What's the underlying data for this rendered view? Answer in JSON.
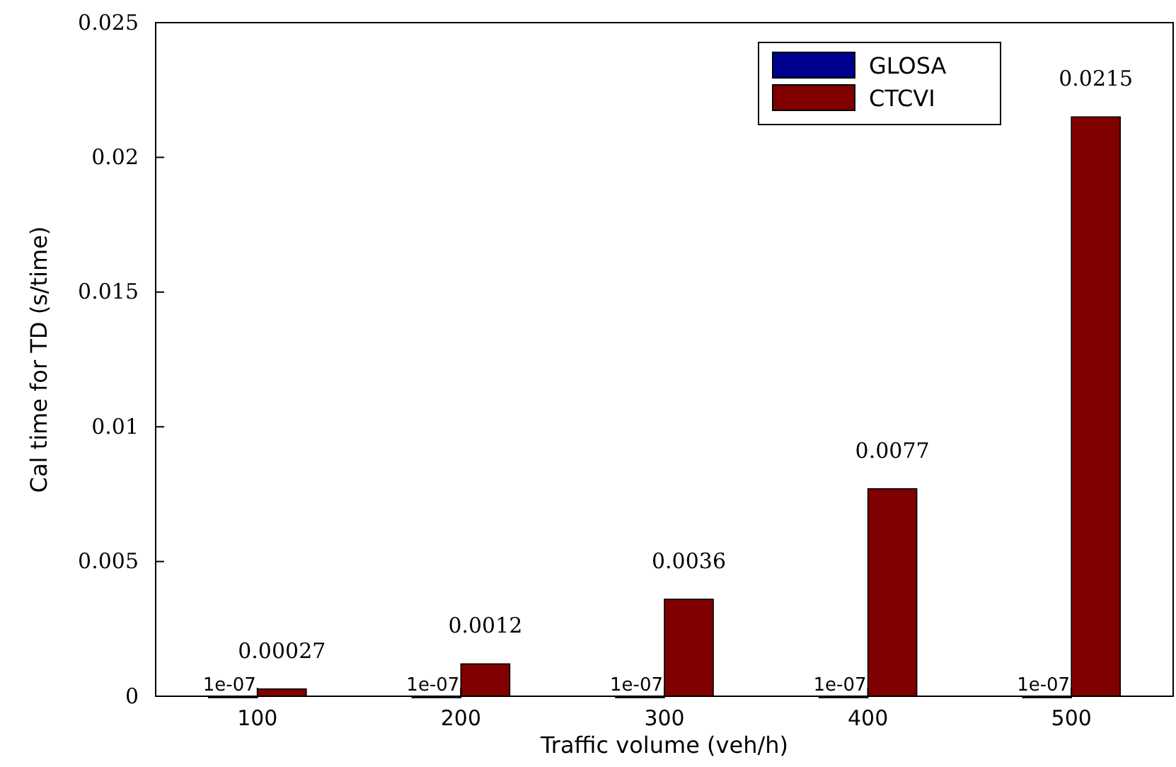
{
  "chart_data": {
    "type": "bar",
    "xlabel": "Traffic volume (veh/h)",
    "ylabel": "Cal time for TD (s/time)",
    "categories": [
      "100",
      "200",
      "300",
      "400",
      "500"
    ],
    "series": [
      {
        "name": "GLOSA",
        "color": "#00008f",
        "values": [
          1e-07,
          1e-07,
          1e-07,
          1e-07,
          1e-07
        ],
        "value_labels": [
          "1e-07",
          "1e-07",
          "1e-07",
          "1e-07",
          "1e-07"
        ]
      },
      {
        "name": "CTCVI",
        "color": "#800000",
        "values": [
          0.00027,
          0.0012,
          0.0036,
          0.0077,
          0.0215
        ],
        "value_labels": [
          "0.00027",
          "0.0012",
          "0.0036",
          "0.0077",
          "0.0215"
        ]
      }
    ],
    "ylim": [
      0,
      0.025
    ],
    "yticks": [
      0,
      0.005,
      0.01,
      0.015,
      0.02,
      0.025
    ],
    "legend": "top right",
    "grid": false
  }
}
